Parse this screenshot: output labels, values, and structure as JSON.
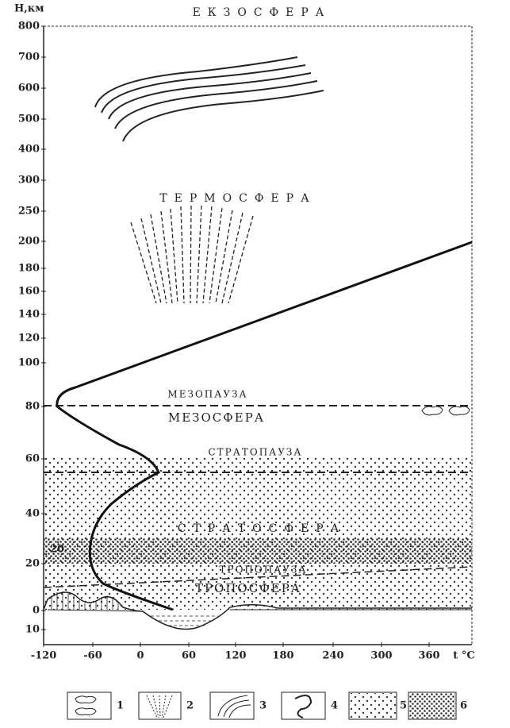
{
  "axis": {
    "y_title": "H,км",
    "y_labels": [
      "800",
      "700",
      "600",
      "500",
      "400",
      "300",
      "250",
      "200",
      "180",
      "160",
      "140",
      "120",
      "100",
      "80",
      "60",
      "40",
      "20",
      "0",
      "10"
    ],
    "x_labels": [
      "-120",
      "-60",
      "0",
      "60",
      "120",
      "180",
      "240",
      "300",
      "360"
    ],
    "x_title": "t °C"
  },
  "layers": [
    "ЕКЗОСФЕРА",
    "ТЕРМОСФЕРА",
    "МЕЗОПАУЗА",
    "МЕЗОСФЕРА",
    "СТРАТОПАУЗА",
    "СТРАТОСФЕРА",
    "ТРОПОПАУЗА",
    "ТРОПОСФЕРА"
  ],
  "ozone_label": "20",
  "legend": [
    "1",
    "2",
    "3",
    "4",
    "5",
    "6"
  ]
}
